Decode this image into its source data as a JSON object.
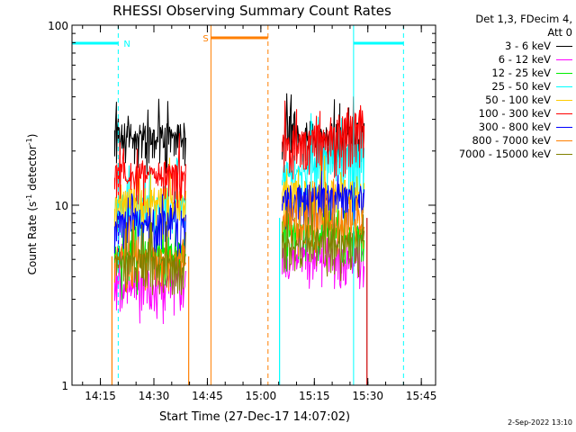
{
  "chart_data": {
    "type": "line",
    "title": "RHESSI Observing Summary Count Rates",
    "xlabel": "Start Time (27-Dec-17 14:07:02)",
    "ylabel_prefix": "Count Rate (s",
    "ylabel_exp1": "-1",
    "ylabel_mid": " detector",
    "ylabel_exp2": "-1",
    "ylabel_suffix": ")",
    "yscale": "log",
    "ylim": [
      1,
      100
    ],
    "xlim_minutes": [
      "14:07",
      "15:49"
    ],
    "x_ticks": [
      "14:15",
      "14:30",
      "14:45",
      "15:00",
      "15:15",
      "15:30",
      "15:45"
    ],
    "y_ticks": [
      "1",
      "10",
      "100"
    ],
    "segments": [
      {
        "start": "14:19",
        "end": "14:39"
      },
      {
        "start": "15:06",
        "end": "15:29"
      }
    ],
    "series": [
      {
        "name": "3 - 6 keV",
        "color": "#000000",
        "values": [
          [
            25,
            25
          ]
        ]
      },
      {
        "name": "6 - 12 keV",
        "color": "#ff00ff",
        "values": [
          [
            3.8,
            5.2
          ]
        ]
      },
      {
        "name": "12 - 25 keV",
        "color": "#00ee00",
        "values": [
          [
            5.5,
            7.5
          ]
        ]
      },
      {
        "name": "25 - 50 keV",
        "color": "#00ffff",
        "values": [
          [
            10.5,
            16
          ]
        ]
      },
      {
        "name": "50 - 100 keV",
        "color": "#ffcc00",
        "values": [
          [
            11,
            12
          ]
        ]
      },
      {
        "name": "100 - 300 keV",
        "color": "#ff0000",
        "values": [
          [
            15.5,
            22
          ]
        ]
      },
      {
        "name": "300 - 800 keV",
        "color": "#0000ff",
        "values": [
          [
            8.5,
            11.5
          ]
        ]
      },
      {
        "name": "800 - 7000 keV",
        "color": "#ff7f00",
        "values": [
          [
            5.2,
            8.5
          ]
        ]
      },
      {
        "name": "7000 - 15000 keV",
        "color": "#808000",
        "values": [
          [
            5.0,
            6.5
          ]
        ]
      }
    ],
    "annotations": [
      {
        "label": "N",
        "color": "#00ffff",
        "start": "14:07",
        "end": "14:20"
      },
      {
        "label": "S",
        "color": "#ff7f00",
        "start": "14:46",
        "end": "15:02"
      },
      {
        "label": "",
        "color": "#00ffff",
        "start": "15:26",
        "end": "15:40"
      }
    ],
    "legend": {
      "header_line1": "Det 1,3, FDecim 4,",
      "header_line2": "Att 0",
      "placement": "right"
    }
  },
  "footer": "2-Sep-2022 13:10"
}
